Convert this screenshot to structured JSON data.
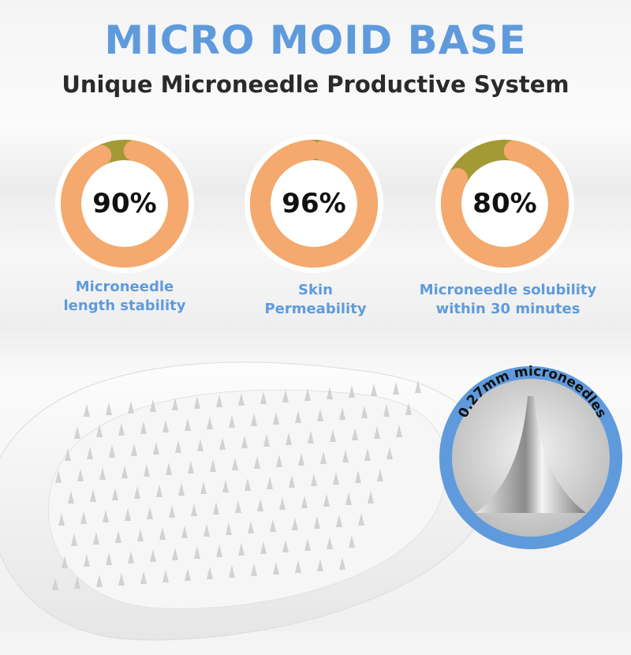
{
  "header": {
    "title": "MICRO MOID BASE",
    "subtitle": "Unique Microneedle Productive System"
  },
  "stats": [
    {
      "value": 90,
      "label": "90%",
      "caption_lines": [
        "Microneedle",
        "length stability"
      ]
    },
    {
      "value": 96,
      "label": "96%",
      "caption_lines": [
        "Skin",
        "Permeability"
      ]
    },
    {
      "value": 80,
      "label": "80%",
      "caption_lines": [
        "Microneedle solubility",
        "within 30 minutes"
      ]
    }
  ],
  "callout": {
    "text": "0.27mm microneedles"
  },
  "colors": {
    "accent_blue": "#5f9bdc",
    "ring_orange": "#f5a96e",
    "ring_olive": "#a39a35",
    "text_dark": "#2a2a2a"
  }
}
